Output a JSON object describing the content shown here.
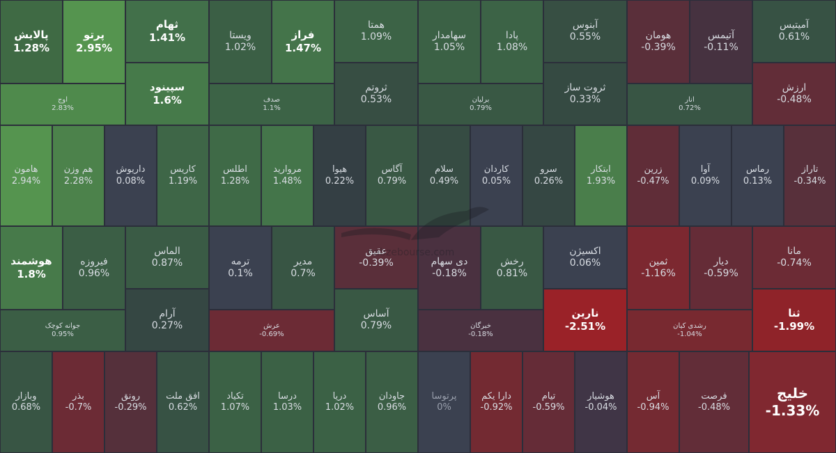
{
  "chart_data": {
    "type": "treemap",
    "watermark": "nabzebourse.com",
    "tiles": [
      {
        "name": "پالایش",
        "value": "1.28%",
        "color": "#3f6a44"
      },
      {
        "name": "پرتو",
        "value": "2.95%",
        "color": "#55944f"
      },
      {
        "name": "اوج",
        "value": "2.83%",
        "color": "#4f8a4c"
      },
      {
        "name": "ثهام",
        "value": "1.41%",
        "color": "#42704a"
      },
      {
        "name": "سپینود",
        "value": "1.6%",
        "color": "#467a4a"
      },
      {
        "name": "ویستا",
        "value": "1.02%",
        "color": "#3b5f45"
      },
      {
        "name": "فراز",
        "value": "1.47%",
        "color": "#44744a"
      },
      {
        "name": "صدف",
        "value": "1.1%",
        "color": "#3c6346"
      },
      {
        "name": "همتا",
        "value": "1.09%",
        "color": "#3c6346"
      },
      {
        "name": "ثروتم",
        "value": "0.53%",
        "color": "#374e43"
      },
      {
        "name": "سهامدار",
        "value": "1.05%",
        "color": "#3b6145"
      },
      {
        "name": "پادا",
        "value": "1.08%",
        "color": "#3c6346"
      },
      {
        "name": "برلیان",
        "value": "0.79%",
        "color": "#395844"
      },
      {
        "name": "آبنوس",
        "value": "0.55%",
        "color": "#374f43"
      },
      {
        "name": "ثروت ساز",
        "value": "0.33%",
        "color": "#354a42"
      },
      {
        "name": "هومان",
        "value": "-0.39%",
        "color": "#5a2f3a"
      },
      {
        "name": "آتیمس",
        "value": "-0.11%",
        "color": "#463240"
      },
      {
        "name": "آمیتیس",
        "value": "0.61%",
        "color": "#375244"
      },
      {
        "name": "انار",
        "value": "0.72%",
        "color": "#385544"
      },
      {
        "name": "ارزش",
        "value": "-0.48%",
        "color": "#622d38"
      },
      {
        "name": "هامون",
        "value": "2.94%",
        "color": "#55944f"
      },
      {
        "name": "هم وزن",
        "value": "2.28%",
        "color": "#4c824b"
      },
      {
        "name": "داریوش",
        "value": "0.08%",
        "color": "#3b4150"
      },
      {
        "name": "کاریس",
        "value": "1.19%",
        "color": "#3e6647"
      },
      {
        "name": "اطلس",
        "value": "1.28%",
        "color": "#3f6a47"
      },
      {
        "name": "مروارید",
        "value": "1.48%",
        "color": "#44754a"
      },
      {
        "name": "هیوا",
        "value": "0.22%",
        "color": "#343f44"
      },
      {
        "name": "آگاس",
        "value": "0.79%",
        "color": "#395844"
      },
      {
        "name": "سلام",
        "value": "0.49%",
        "color": "#364c43"
      },
      {
        "name": "کاردان",
        "value": "0.05%",
        "color": "#3b4150"
      },
      {
        "name": "سرو",
        "value": "0.26%",
        "color": "#354743"
      },
      {
        "name": "ابتکار",
        "value": "1.93%",
        "color": "#4a7e4b"
      },
      {
        "name": "زرین",
        "value": "-0.47%",
        "color": "#602d38"
      },
      {
        "name": "آوا",
        "value": "0.09%",
        "color": "#3b4150"
      },
      {
        "name": "رماس",
        "value": "0.13%",
        "color": "#3b4150"
      },
      {
        "name": "تاراز",
        "value": "-0.34%",
        "color": "#58303b"
      },
      {
        "name": "هوشمند",
        "value": "1.8%",
        "color": "#477a4a"
      },
      {
        "name": "فیروزه",
        "value": "0.96%",
        "color": "#3b5e45"
      },
      {
        "name": "الماس",
        "value": "0.87%",
        "color": "#3a5b45"
      },
      {
        "name": "جوانه کوچک",
        "value": "0.95%",
        "color": "#3b5e45"
      },
      {
        "name": "آرام",
        "value": "0.27%",
        "color": "#354743"
      },
      {
        "name": "ترمه",
        "value": "0.1%",
        "color": "#3b4150"
      },
      {
        "name": "مدیر",
        "value": "0.7%",
        "color": "#385544"
      },
      {
        "name": "عرش",
        "value": "-0.69%",
        "color": "#6c2b35"
      },
      {
        "name": "عقیق",
        "value": "-0.39%",
        "color": "#5a2f3a"
      },
      {
        "name": "دی سهام",
        "value": "-0.18%",
        "color": "#4a3140"
      },
      {
        "name": "رخش",
        "value": "0.81%",
        "color": "#395844"
      },
      {
        "name": "آساس",
        "value": "0.79%",
        "color": "#395844"
      },
      {
        "name": "خبرگان",
        "value": "-0.18%",
        "color": "#4a3140"
      },
      {
        "name": "اکسیژن",
        "value": "0.06%",
        "color": "#3b4150"
      },
      {
        "name": "نارین",
        "value": "-2.51%",
        "color": "#9a2228"
      },
      {
        "name": "ثمین",
        "value": "-1.16%",
        "color": "#7c2830"
      },
      {
        "name": "دیار",
        "value": "-0.59%",
        "color": "#652c37"
      },
      {
        "name": "رشدی کیان",
        "value": "-1.04%",
        "color": "#782930"
      },
      {
        "name": "مانا",
        "value": "-0.74%",
        "color": "#6c2b35"
      },
      {
        "name": "ثنا",
        "value": "-1.99%",
        "color": "#8f2329"
      },
      {
        "name": "وبازار",
        "value": "0.68%",
        "color": "#385544"
      },
      {
        "name": "بذر",
        "value": "-0.7%",
        "color": "#6c2b35"
      },
      {
        "name": "رونق",
        "value": "-0.29%",
        "color": "#55303b"
      },
      {
        "name": "افق ملت",
        "value": "0.62%",
        "color": "#375244"
      },
      {
        "name": "تکیاد",
        "value": "1.07%",
        "color": "#3b6145"
      },
      {
        "name": "درسا",
        "value": "1.03%",
        "color": "#3b6145"
      },
      {
        "name": "دریا",
        "value": "1.02%",
        "color": "#3b6145"
      },
      {
        "name": "جاودان",
        "value": "0.96%",
        "color": "#3b5e45"
      },
      {
        "name": "پرتوسا",
        "value": "0%",
        "color": "#3b4150"
      },
      {
        "name": "دارا یکم",
        "value": "-0.92%",
        "color": "#732a32"
      },
      {
        "name": "تیام",
        "value": "-0.59%",
        "color": "#652c37"
      },
      {
        "name": "هوشیار",
        "value": "-0.04%",
        "color": "#403546"
      },
      {
        "name": "آس",
        "value": "-0.94%",
        "color": "#742a32"
      },
      {
        "name": "فرصت",
        "value": "-0.48%",
        "color": "#622d38"
      },
      {
        "name": "خلیج",
        "value": "-1.33%",
        "color": "#802830"
      }
    ]
  }
}
